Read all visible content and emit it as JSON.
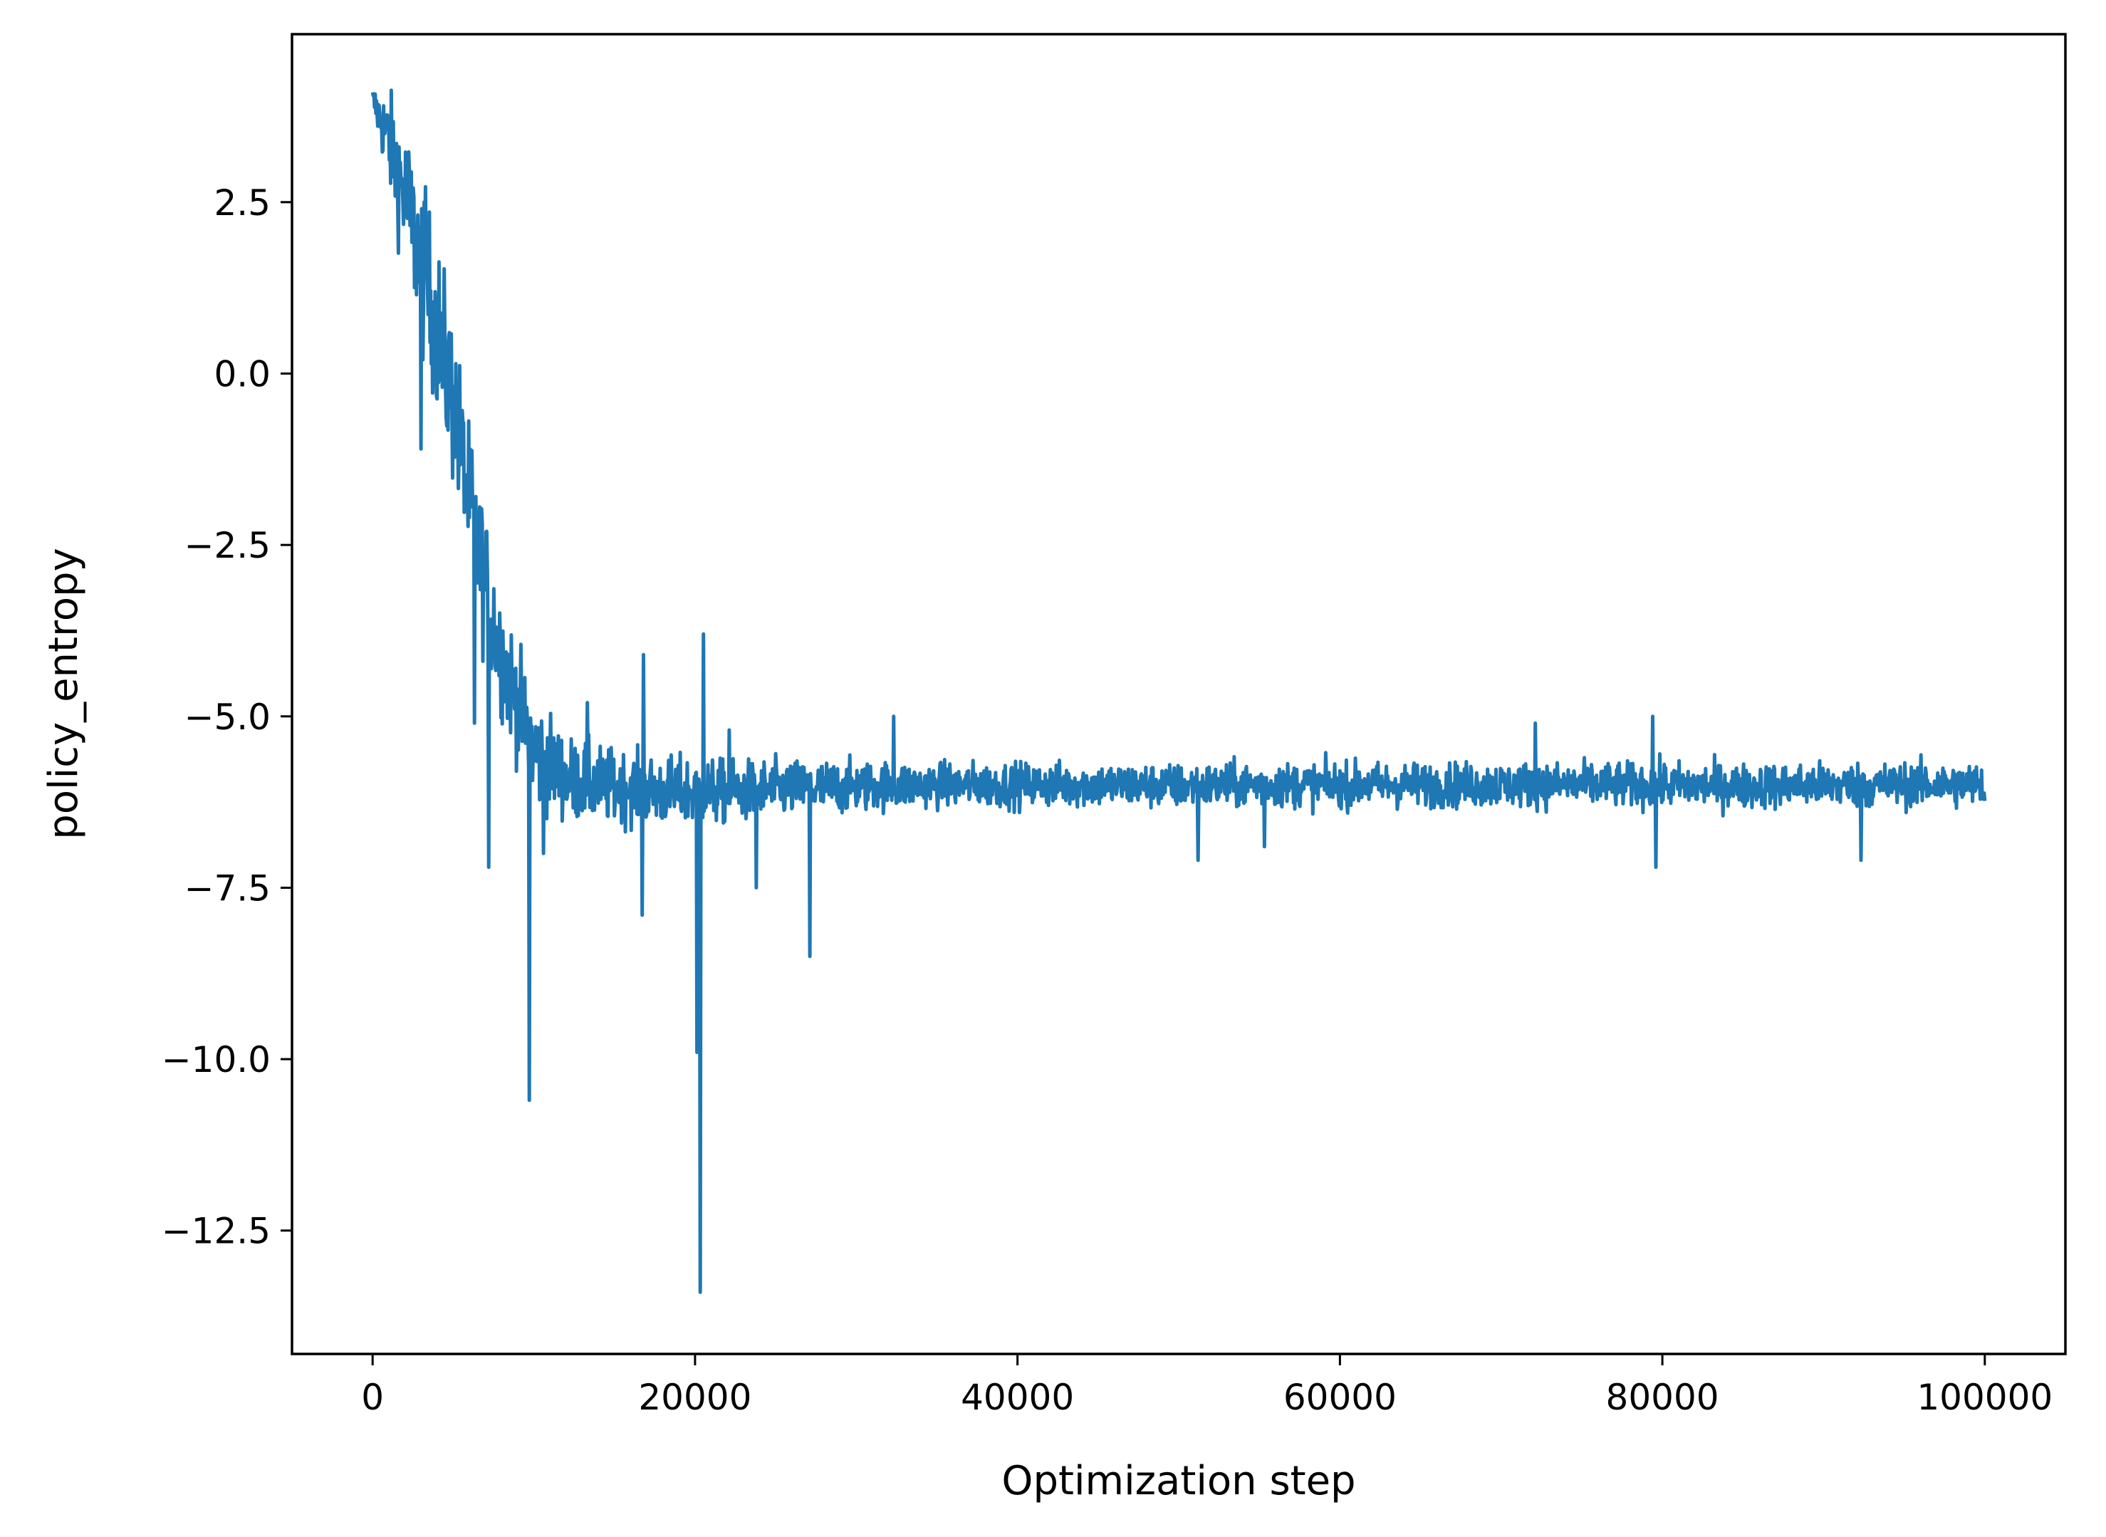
{
  "chart_data": {
    "type": "line",
    "title": "",
    "xlabel": "Optimization step",
    "ylabel": "policy_entropy",
    "xlim": [
      -5000,
      105000
    ],
    "ylim": [
      -14.3,
      4.95
    ],
    "x_ticks": [
      0,
      20000,
      40000,
      60000,
      80000,
      100000
    ],
    "x_tick_labels": [
      "0",
      "20000",
      "40000",
      "60000",
      "80000",
      "100000"
    ],
    "y_ticks": [
      2.5,
      0.0,
      -2.5,
      -5.0,
      -7.5,
      -10.0,
      -12.5
    ],
    "y_tick_labels": [
      "2.5",
      "0.0",
      "−2.5",
      "−5.0",
      "−7.5",
      "−10.0",
      "−12.5"
    ],
    "grid": false,
    "legend": "none",
    "series": [
      {
        "color": "#1f77b4",
        "x": [
          0,
          1000,
          2000,
          3000,
          4000,
          5000,
          6000,
          7000,
          8000,
          9000,
          10000,
          12000,
          14000,
          16000,
          18000,
          20000,
          22000,
          24000,
          26000,
          28000,
          30000,
          35000,
          40000,
          45000,
          50000,
          55000,
          60000,
          65000,
          70000,
          75000,
          80000,
          85000,
          90000,
          95000,
          100000
        ],
        "y": [
          4.0,
          3.4,
          2.6,
          1.6,
          0.7,
          -0.4,
          -1.9,
          -3.1,
          -4.1,
          -4.8,
          -5.5,
          -5.9,
          -6.0,
          -6.05,
          -6.1,
          -6.1,
          -6.1,
          -6.08,
          -6.05,
          -6.05,
          -6.02,
          -6.0,
          -6.0,
          -6.0,
          -6.02,
          -6.0,
          -6.0,
          -6.0,
          -6.0,
          -6.0,
          -6.0,
          -6.02,
          -6.0,
          -6.0,
          -6.0
        ],
        "noise": [
          0.1,
          0.35,
          0.5,
          0.6,
          0.6,
          0.6,
          0.55,
          0.5,
          0.45,
          0.4,
          0.4,
          0.3,
          0.28,
          0.25,
          0.25,
          0.25,
          0.22,
          0.22,
          0.2,
          0.2,
          0.18,
          0.16,
          0.16,
          0.16,
          0.16,
          0.16,
          0.16,
          0.16,
          0.16,
          0.16,
          0.16,
          0.16,
          0.16,
          0.16,
          0.16
        ],
        "spikes": [
          {
            "x": 3000,
            "y": -1.1
          },
          {
            "x": 3200,
            "y": 2.5
          },
          {
            "x": 5600,
            "y": -0.7
          },
          {
            "x": 6300,
            "y": -5.1
          },
          {
            "x": 7200,
            "y": -7.2
          },
          {
            "x": 9700,
            "y": -10.6
          },
          {
            "x": 10600,
            "y": -7.0
          },
          {
            "x": 13300,
            "y": -4.8
          },
          {
            "x": 16700,
            "y": -7.9
          },
          {
            "x": 16800,
            "y": -4.1
          },
          {
            "x": 20100,
            "y": -9.9
          },
          {
            "x": 20300,
            "y": -13.4
          },
          {
            "x": 20500,
            "y": -3.8
          },
          {
            "x": 22100,
            "y": -5.2
          },
          {
            "x": 23800,
            "y": -7.5
          },
          {
            "x": 27100,
            "y": -8.5
          },
          {
            "x": 32300,
            "y": -5.0
          },
          {
            "x": 51200,
            "y": -7.1
          },
          {
            "x": 55300,
            "y": -6.9
          },
          {
            "x": 72100,
            "y": -5.1
          },
          {
            "x": 79400,
            "y": -5.0
          },
          {
            "x": 79600,
            "y": -7.2
          },
          {
            "x": 92300,
            "y": -7.1
          }
        ]
      }
    ]
  }
}
